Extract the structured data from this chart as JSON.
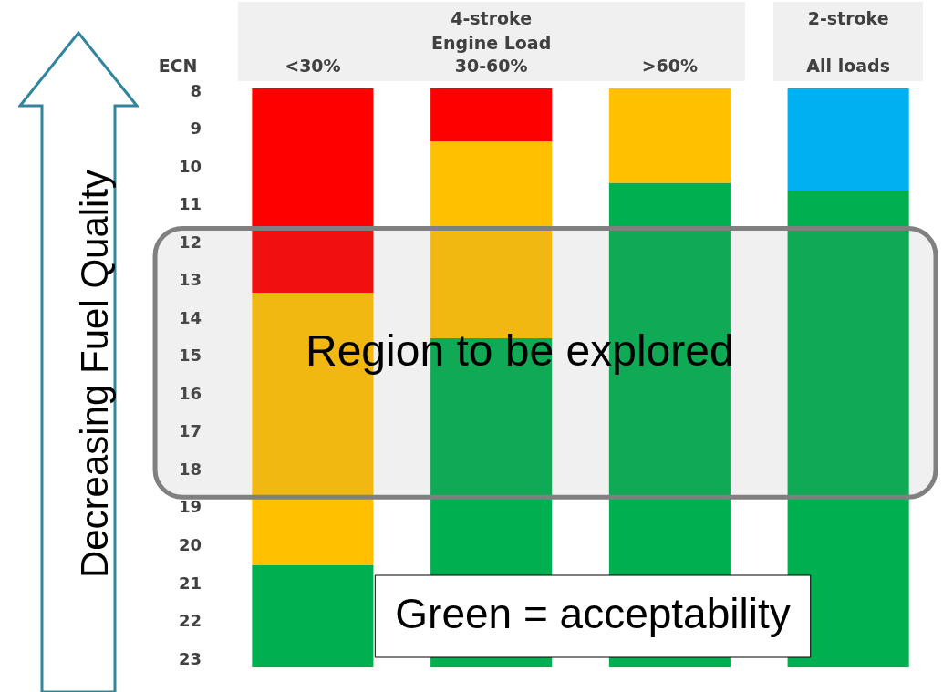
{
  "chart_data": {
    "type": "bar",
    "ylabel": "ECN",
    "categories": [
      "<30%",
      "30-60%",
      ">60%",
      "All loads"
    ],
    "series": [
      {
        "color": "#00b0f0",
        "base": [
          null,
          null,
          null,
          7.9
        ],
        "values": [
          null,
          null,
          null,
          2.7
        ]
      },
      {
        "color": "#ff0000",
        "base": [
          7.9,
          7.9,
          null,
          null
        ],
        "values": [
          5.4,
          1.4,
          null,
          null
        ]
      },
      {
        "color": "#ffc000",
        "base": [
          13.3,
          9.3,
          7.9,
          null
        ],
        "values": [
          7.2,
          5.2,
          2.5,
          null
        ]
      },
      {
        "color": "#00b050",
        "base": [
          20.5,
          14.5,
          10.4,
          10.6
        ],
        "values": [
          2.7,
          8.7,
          12.8,
          12.6
        ]
      }
    ],
    "ylim": [
      23.2,
      7.9
    ],
    "yticks": [
      8,
      9,
      10,
      11,
      12,
      13,
      14,
      15,
      16,
      17,
      18,
      19,
      20,
      21,
      22,
      23
    ],
    "grid": false,
    "legend": false,
    "bands": [
      {
        "axis": "y",
        "from": 11.6,
        "to": 18.7,
        "label": "Region to be explored",
        "color": "#808080"
      }
    ],
    "annotations": [
      "4-stroke",
      "Engine Load",
      "2-stroke",
      "Decreasing Fuel Quality",
      "Green = acceptability"
    ]
  }
}
